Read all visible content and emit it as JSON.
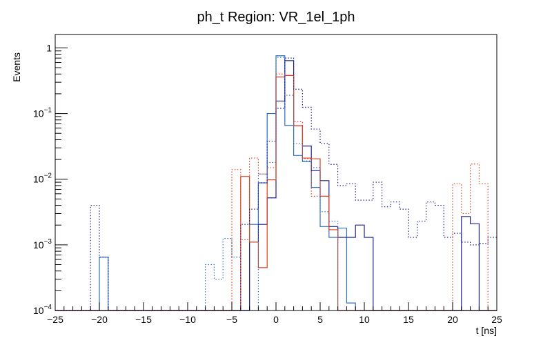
{
  "chart_data": {
    "type": "histogram",
    "title": "ph_t Region: VR_1el_1ph",
    "xlabel": "t [ns]",
    "ylabel": "Events",
    "xlim": [
      -25,
      25
    ],
    "ylim": [
      0.0001,
      1.6
    ],
    "yscale": "log",
    "bin_width": 1,
    "x_ticks": [
      -25,
      -20,
      -15,
      -10,
      -5,
      0,
      5,
      10,
      15,
      20,
      25
    ],
    "y_ticks": [
      {
        "value": 0.0001,
        "base": "10",
        "exp": "-4"
      },
      {
        "value": 0.001,
        "base": "10",
        "exp": "-3"
      },
      {
        "value": 0.01,
        "base": "10",
        "exp": "-2"
      },
      {
        "value": 0.1,
        "base": "10",
        "exp": "-1"
      },
      {
        "value": 1,
        "base": "1",
        "exp": ""
      }
    ],
    "series": [
      {
        "color": "#2f6fc2",
        "style": "solid",
        "bins": [
          [
            -20,
            0.00065
          ],
          [
            -3,
            0.00205
          ],
          [
            -2,
            0.0088
          ],
          [
            -1,
            0.1
          ],
          [
            0,
            0.76
          ],
          [
            1,
            0.066
          ],
          [
            2,
            0.023
          ],
          [
            3,
            0.0185
          ],
          [
            4,
            0.0075
          ],
          [
            5,
            0.0019
          ],
          [
            6,
            0.0013
          ],
          [
            7,
            0.0018
          ],
          [
            8,
            0.00013
          ]
        ]
      },
      {
        "color": "#1f2090",
        "style": "solid",
        "bins": [
          [
            -3,
            0.0011
          ],
          [
            -2,
            0.00205
          ],
          [
            -1,
            0.0052
          ],
          [
            0,
            0.155
          ],
          [
            1,
            0.64
          ],
          [
            2,
            0.065
          ],
          [
            3,
            0.032
          ],
          [
            4,
            0.0135
          ],
          [
            5,
            0.0095
          ],
          [
            6,
            0.0019
          ],
          [
            7,
            0.0013
          ],
          [
            8,
            0.0013
          ],
          [
            9,
            0.002
          ],
          [
            10,
            0.0013
          ],
          [
            21,
            0.0027
          ],
          [
            22,
            0.0021
          ]
        ]
      },
      {
        "color": "#e0401e",
        "style": "solid",
        "bins": [
          [
            -4,
            0.011
          ],
          [
            -3,
            0.0011
          ],
          [
            -2,
            0.00045
          ],
          [
            -1,
            0.0098
          ],
          [
            0,
            0.36
          ],
          [
            1,
            0.38
          ],
          [
            2,
            0.065
          ],
          [
            3,
            0.021
          ],
          [
            4,
            0.0205
          ],
          [
            5,
            0.0055
          ],
          [
            6,
            0.0017
          ]
        ]
      },
      {
        "color": "#2f6fc2",
        "style": "dotted",
        "bins": [
          [
            -8,
            0.0005
          ],
          [
            -7,
            0.0003
          ],
          [
            -6,
            0.00125
          ],
          [
            -5,
            0.00065
          ],
          [
            -2,
            0.012
          ],
          [
            -1,
            0.018
          ],
          [
            0,
            0.72
          ],
          [
            1,
            0.19
          ],
          [
            2,
            0.035
          ],
          [
            3,
            0.019
          ],
          [
            4,
            0.015
          ],
          [
            5,
            0.0032
          ],
          [
            6,
            0.0023
          ]
        ]
      },
      {
        "color": "#1f2090",
        "style": "dotted",
        "bins": [
          [
            -21,
            0.004
          ],
          [
            -20,
            0.00065
          ],
          [
            -4,
            0.00205
          ],
          [
            -3,
            0.0035
          ],
          [
            -2,
            0.0088
          ],
          [
            -1,
            0.038
          ],
          [
            0,
            0.12
          ],
          [
            1,
            0.7
          ],
          [
            2,
            0.235
          ],
          [
            3,
            0.125
          ],
          [
            4,
            0.058
          ],
          [
            5,
            0.035
          ],
          [
            6,
            0.0168
          ],
          [
            7,
            0.008
          ],
          [
            8,
            0.0085
          ],
          [
            9,
            0.0048
          ],
          [
            10,
            0.0048
          ],
          [
            11,
            0.009
          ],
          [
            12,
            0.0038
          ],
          [
            13,
            0.0045
          ],
          [
            14,
            0.0035
          ],
          [
            15,
            0.0013
          ],
          [
            16,
            0.0023
          ],
          [
            17,
            0.0045
          ],
          [
            18,
            0.004
          ],
          [
            19,
            0.0013
          ],
          [
            20,
            0.0015
          ],
          [
            21,
            0.0011
          ],
          [
            22,
            0.001
          ],
          [
            23,
            0.00105
          ],
          [
            24,
            0.0013
          ],
          [
            25,
            0.0023
          ]
        ]
      },
      {
        "color": "#e0401e",
        "style": "dotted",
        "bins": [
          [
            -5,
            0.014
          ],
          [
            -4,
            0.0012
          ],
          [
            -3,
            0.021
          ],
          [
            -2,
            0.012
          ],
          [
            -1,
            0.015
          ],
          [
            0,
            0.4
          ],
          [
            1,
            0.38
          ],
          [
            2,
            0.075
          ],
          [
            3,
            0.0205
          ],
          [
            4,
            0.0055
          ],
          [
            5,
            0.0055
          ],
          [
            6,
            0.0017
          ],
          [
            20,
            0.0085
          ],
          [
            21,
            0.003
          ],
          [
            22,
            0.017
          ],
          [
            23,
            0.0085
          ]
        ]
      }
    ]
  }
}
